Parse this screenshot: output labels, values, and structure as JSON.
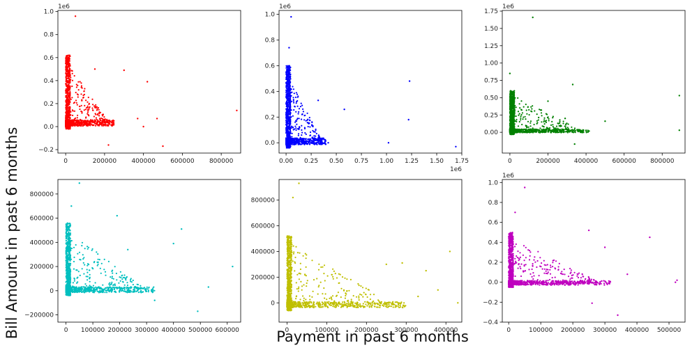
{
  "figure": {
    "xlabel": "Payment in past 6 months",
    "ylabel": "Bill Amount in past 6 months"
  },
  "chart_data": [
    {
      "type": "scatter",
      "color": "#ff0000",
      "xlim": [
        -40000,
        900000
      ],
      "ylim": [
        -0.23,
        1.01
      ],
      "xticks": [
        0,
        200000,
        400000,
        600000,
        800000
      ],
      "xtick_labels": [
        "0",
        "200000",
        "400000",
        "600000",
        "800000"
      ],
      "yticks": [
        -0.2,
        0.0,
        0.2,
        0.4,
        0.6,
        0.8,
        1.0
      ],
      "ytick_labels": [
        "−0.2",
        "0.0",
        "0.2",
        "0.4",
        "0.6",
        "0.8",
        "1.0"
      ],
      "y_multiplier": "1e6",
      "x_multiplier": "",
      "outliers": [
        [
          50000,
          0.96
        ],
        [
          150000,
          0.5
        ],
        [
          300000,
          0.49
        ],
        [
          420000,
          0.39
        ],
        [
          880000,
          0.14
        ],
        [
          370000,
          0.07
        ],
        [
          500000,
          -0.17
        ],
        [
          220000,
          -0.16
        ],
        [
          400000,
          0.0
        ],
        [
          470000,
          0.07
        ]
      ],
      "cluster": {
        "xmax": 250000,
        "ymin": -0.02,
        "ymax": 0.62
      }
    },
    {
      "type": "scatter",
      "color": "#0000ff",
      "xlim": [
        -0.07,
        1.75
      ],
      "ylim": [
        -0.08,
        1.03
      ],
      "xticks": [
        0.0,
        0.25,
        0.5,
        0.75,
        1.0,
        1.25,
        1.5,
        1.75
      ],
      "xtick_labels": [
        "0.00",
        "0.25",
        "0.50",
        "0.75",
        "1.00",
        "1.25",
        "1.50",
        "1.75"
      ],
      "yticks": [
        0.0,
        0.2,
        0.4,
        0.6,
        0.8,
        1.0
      ],
      "ytick_labels": [
        "0.0",
        "0.2",
        "0.4",
        "0.6",
        "0.8",
        "1.0"
      ],
      "y_multiplier": "1e6",
      "x_multiplier": "1e6",
      "outliers": [
        [
          0.05,
          0.98
        ],
        [
          0.03,
          0.74
        ],
        [
          0.32,
          0.33
        ],
        [
          0.58,
          0.26
        ],
        [
          1.23,
          0.48
        ],
        [
          1.22,
          0.18
        ],
        [
          1.02,
          0.0
        ],
        [
          1.69,
          -0.03
        ],
        [
          0.42,
          0.0
        ]
      ],
      "cluster": {
        "xmax": 0.4,
        "ymin": -0.04,
        "ymax": 0.6
      }
    },
    {
      "type": "scatter",
      "color": "#008000",
      "xlim": [
        -40000,
        920000
      ],
      "ylim": [
        -0.3,
        1.76
      ],
      "xticks": [
        0,
        200000,
        400000,
        600000,
        800000
      ],
      "xtick_labels": [
        "0",
        "200000",
        "400000",
        "600000",
        "800000"
      ],
      "yticks": [
        0.0,
        0.25,
        0.5,
        0.75,
        1.0,
        1.25,
        1.5,
        1.75
      ],
      "ytick_labels": [
        "0.00",
        "0.25",
        "0.50",
        "0.75",
        "1.00",
        "1.25",
        "1.50",
        "1.75"
      ],
      "y_multiplier": "1e6",
      "x_multiplier": "",
      "outliers": [
        [
          120000,
          1.66
        ],
        [
          0,
          0.85
        ],
        [
          330000,
          0.69
        ],
        [
          500000,
          0.16
        ],
        [
          890000,
          0.53
        ],
        [
          890000,
          0.03
        ],
        [
          340000,
          -0.17
        ],
        [
          200000,
          0.45
        ],
        [
          290000,
          0.2
        ]
      ],
      "cluster": {
        "xmax": 420000,
        "ymin": -0.03,
        "ymax": 0.6
      }
    },
    {
      "type": "scatter",
      "color": "#00bfbf",
      "xlim": [
        -30000,
        650000
      ],
      "ylim": [
        -260000,
        920000
      ],
      "xticks": [
        0,
        100000,
        200000,
        300000,
        400000,
        500000,
        600000
      ],
      "xtick_labels": [
        "0",
        "100000",
        "200000",
        "300000",
        "400000",
        "500000",
        "600000"
      ],
      "yticks": [
        -200000,
        0,
        200000,
        400000,
        600000,
        800000
      ],
      "ytick_labels": [
        "−200000",
        "0",
        "200000",
        "400000",
        "600000",
        "800000"
      ],
      "y_multiplier": "",
      "x_multiplier": "",
      "outliers": [
        [
          50000,
          890000
        ],
        [
          20000,
          700000
        ],
        [
          190000,
          620000
        ],
        [
          430000,
          510000
        ],
        [
          400000,
          390000
        ],
        [
          230000,
          340000
        ],
        [
          620000,
          200000
        ],
        [
          530000,
          30000
        ],
        [
          490000,
          -170000
        ],
        [
          330000,
          -80000
        ]
      ],
      "cluster": {
        "xmax": 330000,
        "ymin": -40000,
        "ymax": 560000
      }
    },
    {
      "type": "scatter",
      "color": "#bfbf00",
      "xlim": [
        -20000,
        440000
      ],
      "ylim": [
        -150000,
        960000
      ],
      "xticks": [
        0,
        100000,
        200000,
        300000,
        400000
      ],
      "xtick_labels": [
        "0",
        "100000",
        "200000",
        "300000",
        "400000"
      ],
      "yticks": [
        0,
        200000,
        400000,
        600000,
        800000
      ],
      "ytick_labels": [
        "0",
        "200000",
        "400000",
        "600000",
        "800000"
      ],
      "y_multiplier": "",
      "x_multiplier": "",
      "outliers": [
        [
          30000,
          930000
        ],
        [
          15000,
          820000
        ],
        [
          290000,
          310000
        ],
        [
          410000,
          400000
        ],
        [
          430000,
          0
        ],
        [
          380000,
          100000
        ],
        [
          330000,
          50000
        ],
        [
          250000,
          300000
        ],
        [
          350000,
          250000
        ]
      ],
      "cluster": {
        "xmax": 300000,
        "ymin": -60000,
        "ymax": 520000
      }
    },
    {
      "type": "scatter",
      "color": "#bf00bf",
      "xlim": [
        -20000,
        550000
      ],
      "ylim": [
        -0.4,
        1.03
      ],
      "xticks": [
        0,
        100000,
        200000,
        300000,
        400000,
        500000
      ],
      "xtick_labels": [
        "0",
        "100000",
        "200000",
        "300000",
        "400000",
        "500000"
      ],
      "yticks": [
        -0.4,
        -0.2,
        0.0,
        0.2,
        0.4,
        0.6,
        0.8,
        1.0
      ],
      "ytick_labels": [
        "−0.4",
        "−0.2",
        "0.0",
        "0.2",
        "0.4",
        "0.6",
        "0.8",
        "1.0"
      ],
      "y_multiplier": "1e6",
      "x_multiplier": "",
      "outliers": [
        [
          50000,
          0.95
        ],
        [
          20000,
          0.7
        ],
        [
          340000,
          -0.33
        ],
        [
          440000,
          0.45
        ],
        [
          525000,
          0.02
        ],
        [
          520000,
          0.0
        ],
        [
          250000,
          0.52
        ],
        [
          300000,
          0.35
        ],
        [
          260000,
          -0.21
        ],
        [
          370000,
          0.08
        ]
      ],
      "cluster": {
        "xmax": 320000,
        "ymin": -0.05,
        "ymax": 0.5
      }
    }
  ]
}
